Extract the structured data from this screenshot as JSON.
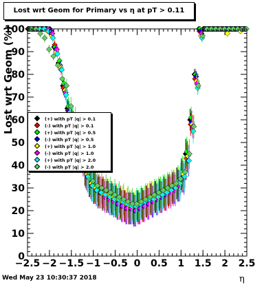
{
  "title": "Lost wrt Geom for Primary vs   η at pT > 0.11",
  "footer": "Wed May 23 10:30:37 2018",
  "chart_data": {
    "type": "scatter",
    "xlabel": "η",
    "ylabel": "Lost wrt Geom (%)",
    "xlim": [
      -2.5,
      2.5
    ],
    "ylim": [
      0,
      100
    ],
    "xticks": [
      "−2.5",
      "−2",
      "−1.5",
      "−1",
      "−0.5",
      "0",
      "0.5",
      "1",
      "1.5",
      "2",
      "2.5"
    ],
    "yticks": [
      "0",
      "10",
      "20",
      "30",
      "40",
      "50",
      "60",
      "70",
      "80",
      "90",
      "100"
    ],
    "legend_position": "left-middle",
    "x": [
      -2.45,
      -2.35,
      -2.25,
      -2.15,
      -2.05,
      -1.95,
      -1.85,
      -1.75,
      -1.65,
      -1.55,
      -1.45,
      -1.35,
      -1.25,
      -1.15,
      -1.05,
      -0.95,
      -0.85,
      -0.75,
      -0.65,
      -0.55,
      -0.45,
      -0.35,
      -0.25,
      -0.15,
      -0.05,
      0.05,
      0.15,
      0.25,
      0.35,
      0.45,
      0.55,
      0.65,
      0.75,
      0.85,
      0.95,
      1.05,
      1.15,
      1.25,
      1.35,
      1.45,
      1.55,
      1.65,
      1.75,
      1.85,
      1.95,
      2.05,
      2.15,
      2.25,
      2.35,
      2.45
    ],
    "series": [
      {
        "name": "(+) with pT |q| > 0.1",
        "color": "#000000",
        "values": [
          100,
          100,
          100,
          100,
          100,
          100,
          92,
          85,
          75,
          65,
          60,
          55,
          45,
          38,
          33,
          30,
          28,
          27,
          26,
          25,
          24,
          23,
          22,
          21,
          21,
          22,
          23,
          24,
          25,
          26,
          27,
          28,
          29,
          30,
          32,
          36,
          45,
          60,
          80,
          100,
          100,
          100,
          100,
          100,
          100,
          100,
          100,
          100,
          100,
          100
        ]
      },
      {
        "name": "(-) with pT |q| > 0.1",
        "color": "#ff0000",
        "values": [
          100,
          100,
          100,
          100,
          100,
          99,
          93,
          84,
          74,
          64,
          58,
          54,
          44,
          37,
          33,
          30,
          29,
          28,
          27,
          26,
          25,
          24,
          22,
          21,
          20,
          21,
          22,
          24,
          25,
          26,
          26,
          27,
          28,
          29,
          31,
          35,
          43,
          58,
          78,
          99,
          100,
          100,
          100,
          100,
          100,
          100,
          100,
          100,
          100,
          100
        ]
      },
      {
        "name": "(+) with pT |q| > 0.5",
        "color": "#00ff00",
        "values": [
          100,
          100,
          100,
          100,
          100,
          98,
          92,
          86,
          76,
          66,
          61,
          55,
          46,
          38,
          34,
          31,
          29,
          28,
          27,
          25,
          24,
          23,
          22,
          22,
          21,
          22,
          23,
          25,
          26,
          27,
          28,
          29,
          30,
          31,
          33,
          37,
          46,
          61,
          80,
          100,
          100,
          100,
          100,
          100,
          100,
          100,
          100,
          100,
          100,
          100
        ]
      },
      {
        "name": "(-) with pT |q| > 0.5",
        "color": "#0000ff",
        "values": [
          100,
          100,
          100,
          100,
          100,
          99,
          91,
          84,
          73,
          64,
          59,
          53,
          44,
          36,
          32,
          30,
          28,
          27,
          26,
          25,
          23,
          22,
          21,
          21,
          20,
          21,
          22,
          23,
          24,
          25,
          26,
          27,
          29,
          30,
          31,
          35,
          44,
          59,
          79,
          99,
          100,
          100,
          100,
          100,
          100,
          100,
          100,
          100,
          100,
          100
        ]
      },
      {
        "name": "(+) with pT |q| > 1.0",
        "color": "#ffff00",
        "values": [
          100,
          100,
          100,
          100,
          99,
          97,
          90,
          83,
          73,
          63,
          58,
          52,
          43,
          36,
          32,
          30,
          28,
          27,
          27,
          26,
          25,
          24,
          23,
          22,
          22,
          23,
          24,
          25,
          26,
          26,
          27,
          28,
          29,
          31,
          32,
          36,
          44,
          58,
          77,
          97,
          100,
          100,
          100,
          100,
          100,
          98,
          100,
          100,
          99,
          100
        ]
      },
      {
        "name": "(-) with pT |q| > 1.0",
        "color": "#ff00ff",
        "values": [
          100,
          100,
          100,
          100,
          100,
          98,
          91,
          82,
          72,
          62,
          57,
          51,
          42,
          35,
          31,
          29,
          28,
          26,
          25,
          24,
          23,
          22,
          21,
          21,
          20,
          21,
          22,
          23,
          24,
          25,
          26,
          27,
          28,
          29,
          31,
          34,
          42,
          57,
          76,
          98,
          100,
          100,
          100,
          100,
          100,
          100,
          100,
          100,
          100,
          100
        ]
      },
      {
        "name": "(+) with pT |q| > 2.0",
        "color": "#00ffff",
        "values": [
          100,
          100,
          100,
          100,
          99,
          96,
          89,
          82,
          71,
          62,
          56,
          50,
          42,
          35,
          31,
          29,
          28,
          27,
          26,
          25,
          25,
          24,
          23,
          22,
          22,
          23,
          24,
          25,
          25,
          26,
          27,
          28,
          29,
          30,
          32,
          35,
          42,
          55,
          74,
          96,
          100,
          100,
          100,
          100,
          100,
          100,
          100,
          100,
          100,
          100
        ]
      },
      {
        "name": "(-) with pT |q| > 2.0",
        "color": "#66cc66",
        "values": [
          100,
          100,
          98,
          96,
          91,
          88,
          84,
          78,
          75,
          66,
          61,
          54,
          43,
          37,
          33,
          31,
          30,
          29,
          28,
          27,
          26,
          25,
          24,
          23,
          23,
          24,
          25,
          26,
          27,
          28,
          29,
          30,
          31,
          32,
          34,
          37,
          45,
          57,
          75,
          97,
          100,
          100,
          100,
          100,
          100,
          100,
          100,
          100,
          100,
          100
        ]
      }
    ]
  }
}
